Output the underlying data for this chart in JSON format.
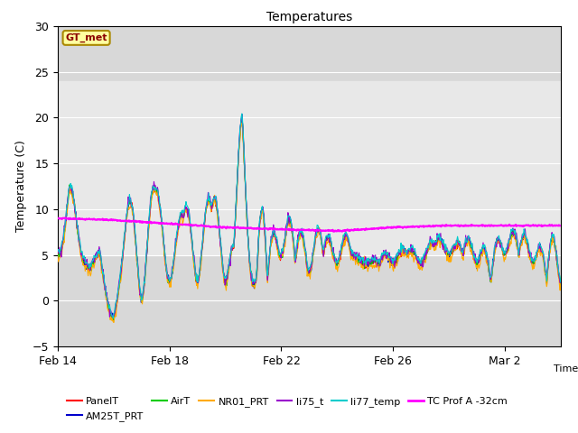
{
  "title": "Temperatures",
  "xlabel": "Time",
  "ylabel": "Temperature (C)",
  "ylim": [
    -5,
    30
  ],
  "yticks": [
    -5,
    0,
    5,
    10,
    15,
    20,
    25,
    30
  ],
  "shaded_band_lo": 5,
  "shaded_band_hi": 24,
  "plot_bg_color": "#d8d8d8",
  "shaded_color": "#e8e8e8",
  "fig_bg_color": "#ffffff",
  "annotation_text": "GT_met",
  "annotation_color": "#8B0000",
  "annotation_bg": "#ffffa0",
  "annotation_border": "#aa8800",
  "series_PanelT_color": "#ff0000",
  "series_AM25T_PRT_color": "#0000cc",
  "series_AirT_color": "#00cc00",
  "series_NR01_PRT_color": "#ffaa00",
  "series_li75_t_color": "#9900cc",
  "series_li77_temp_color": "#00cccc",
  "series_TC_color": "#ff00ff",
  "lw_main": 0.8,
  "lw_tc": 1.6,
  "xtick_labels": [
    "Feb 14",
    "Feb 18",
    "Feb 22",
    "Feb 26",
    "Mar 2"
  ],
  "xtick_positions": [
    0,
    4,
    8,
    12,
    16
  ]
}
